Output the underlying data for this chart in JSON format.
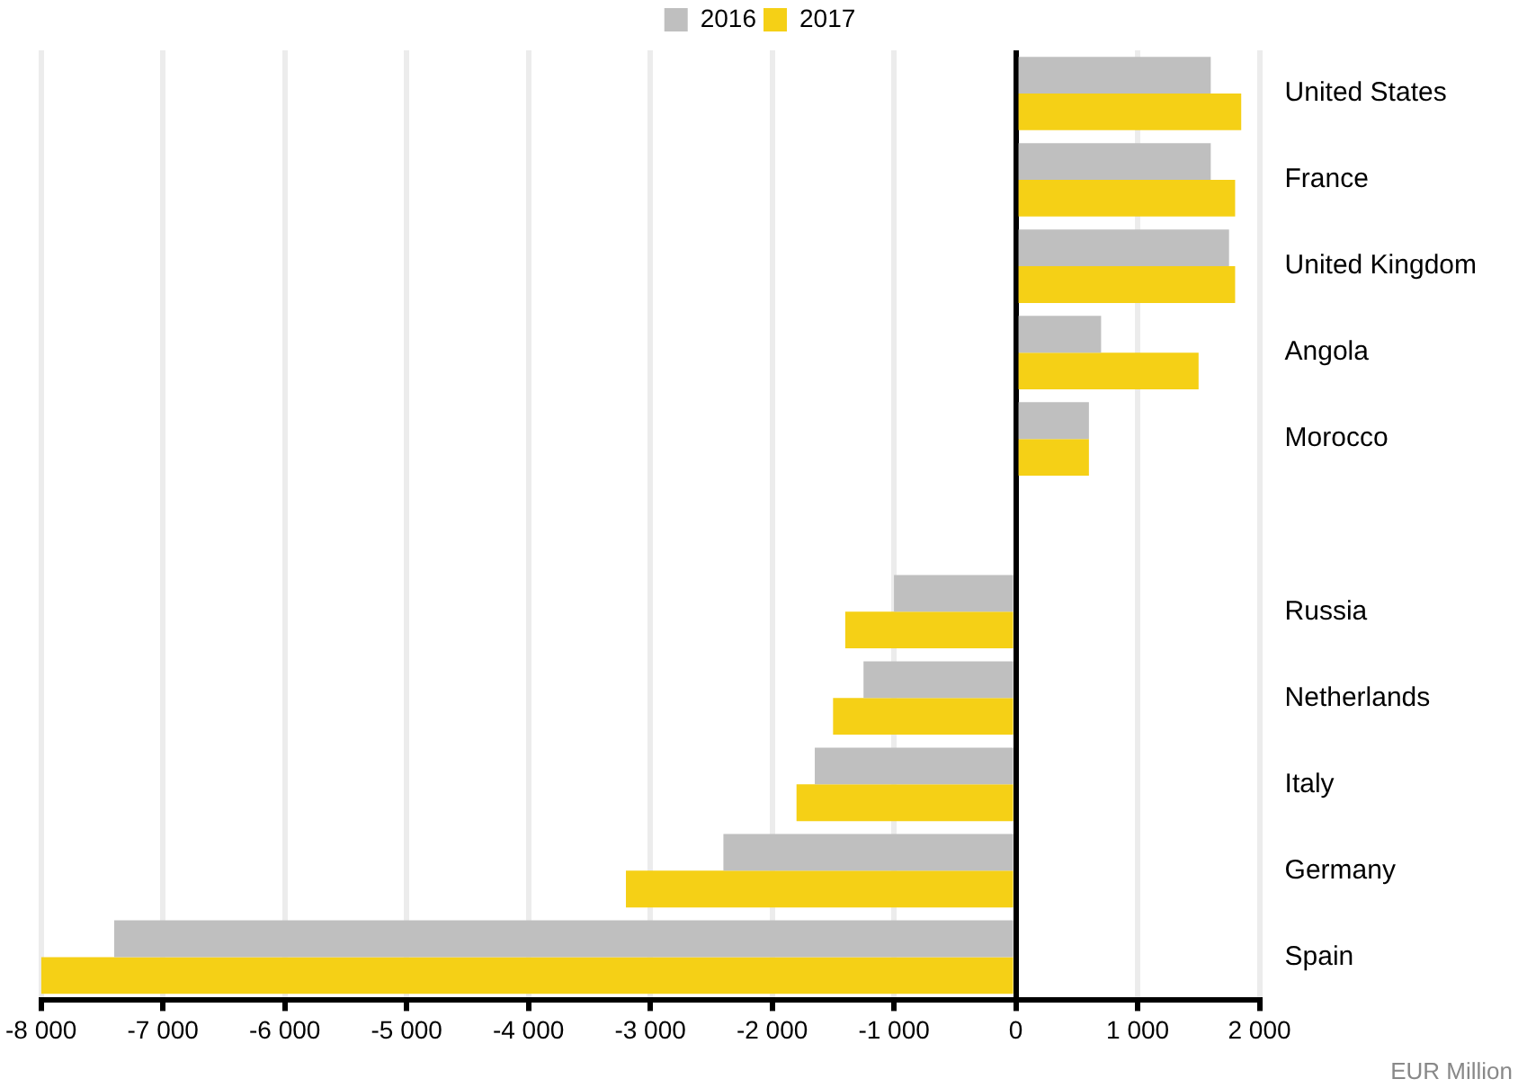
{
  "chart_data": {
    "type": "bar",
    "orientation": "horizontal",
    "categories": [
      "United States",
      "France",
      "United Kingdom",
      "Angola",
      "Morocco",
      null,
      "Russia",
      "Netherlands",
      "Italy",
      "Germany",
      "Spain"
    ],
    "series": [
      {
        "name": "2016",
        "color": "#bfbfbf",
        "values": [
          1600,
          1600,
          1750,
          700,
          600,
          null,
          -1000,
          -1250,
          -1650,
          -2400,
          -7400
        ]
      },
      {
        "name": "2017",
        "color": "#f5d016",
        "values": [
          1850,
          1800,
          1800,
          1500,
          600,
          null,
          -1400,
          -1500,
          -1800,
          -3200,
          -8000
        ]
      }
    ],
    "xlim": [
      -8000,
      2000
    ],
    "xticks": [
      {
        "value": -8000,
        "label": "-8 000"
      },
      {
        "value": -7000,
        "label": "-7 000"
      },
      {
        "value": -6000,
        "label": "-6 000"
      },
      {
        "value": -5000,
        "label": "-5 000"
      },
      {
        "value": -4000,
        "label": "-4 000"
      },
      {
        "value": -3000,
        "label": "-3 000"
      },
      {
        "value": -2000,
        "label": "-2 000"
      },
      {
        "value": -1000,
        "label": "-1 000"
      },
      0,
      {
        "value": 1000,
        "label": "1 000"
      },
      {
        "value": 2000,
        "label": "2 000"
      }
    ],
    "grid": "x",
    "legend": "top",
    "annotations": [
      "EUR Million"
    ]
  }
}
